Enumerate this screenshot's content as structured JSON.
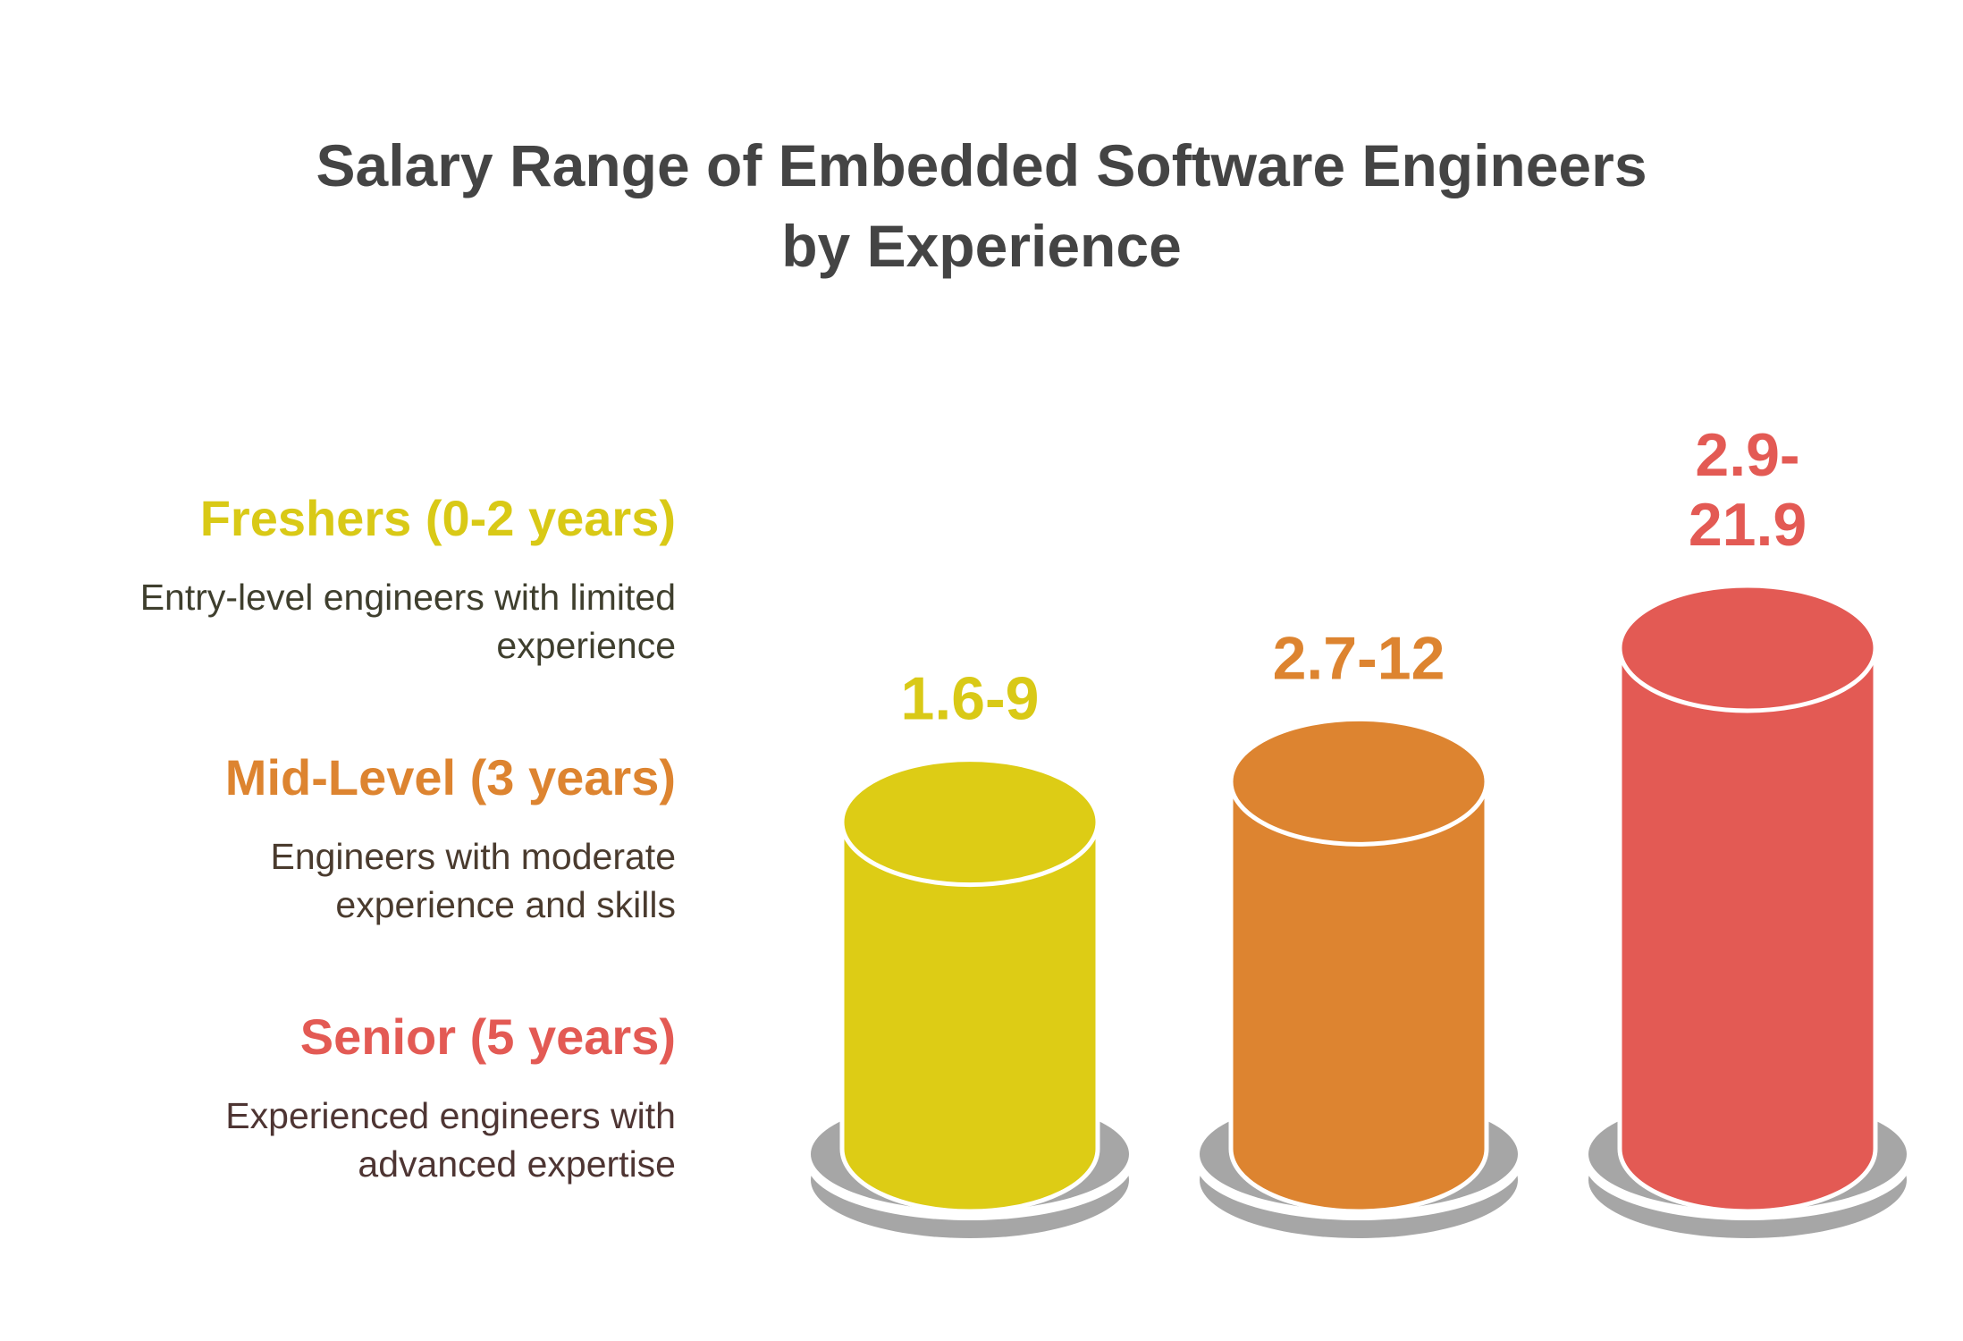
{
  "chart_data": {
    "type": "bar",
    "title_lines": [
      "Salary Range of Embedded Software Engineers",
      "by Experience"
    ],
    "categories": [
      "Freshers (0-2 years)",
      "Mid-Level (3 years)",
      "Senior (5 years)"
    ],
    "descriptions": [
      [
        "Entry-level engineers with limited",
        "experience"
      ],
      [
        "Engineers with moderate",
        "experience and skills"
      ],
      [
        "Experienced engineers with",
        "advanced expertise"
      ]
    ],
    "value_labels": [
      [
        "1.6-9"
      ],
      [
        "2.7-12"
      ],
      [
        "2.9-",
        "21.9"
      ]
    ],
    "ranges": [
      [
        1.6,
        9
      ],
      [
        2.7,
        12
      ],
      [
        2.9,
        21.9
      ]
    ],
    "colors": [
      "#DDCC15",
      "#DD8430",
      "#E35A54"
    ],
    "label_colors": [
      "#D9C916",
      "#DD8430",
      "#E35A54"
    ],
    "desc_colors": [
      "#3F3F2E",
      "#4A3B2E",
      "#4E3533"
    ],
    "base_color": "#A6A6A6"
  }
}
